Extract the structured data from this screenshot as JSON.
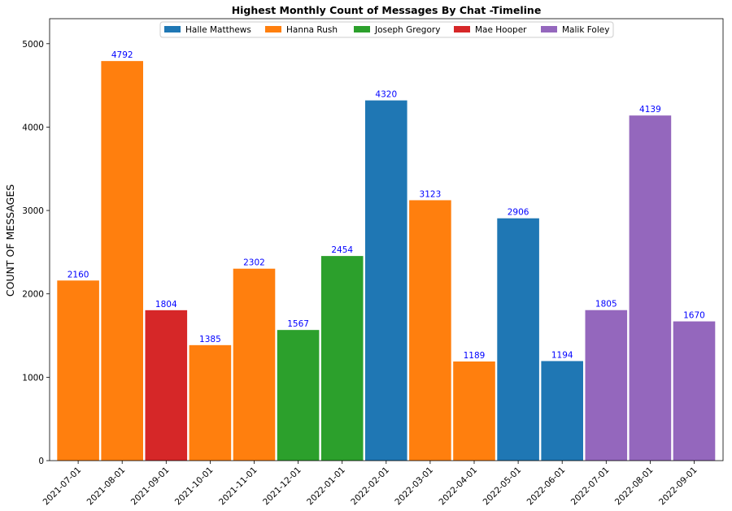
{
  "chart_data": {
    "type": "bar",
    "title": "Highest Monthly Count of Messages By Chat -Timeline",
    "xlabel": "",
    "ylabel": "COUNT OF MESSAGES",
    "ylim": [
      0,
      5300
    ],
    "yticks": [
      0,
      1000,
      2000,
      3000,
      4000,
      5000
    ],
    "grid": false,
    "legend_position": "top-center",
    "legend": [
      {
        "name": "Halle Matthews",
        "color": "#1f77b4"
      },
      {
        "name": "Hanna Rush",
        "color": "#ff7f0e"
      },
      {
        "name": "Joseph Gregory",
        "color": "#2ca02c"
      },
      {
        "name": "Mae Hooper",
        "color": "#d62728"
      },
      {
        "name": "Malik Foley",
        "color": "#9467bd"
      }
    ],
    "bars": [
      {
        "category": "2021-07-01",
        "value": 2160,
        "series": "Hanna Rush"
      },
      {
        "category": "2021-08-01",
        "value": 4792,
        "series": "Hanna Rush"
      },
      {
        "category": "2021-09-01",
        "value": 1804,
        "series": "Mae Hooper"
      },
      {
        "category": "2021-10-01",
        "value": 1385,
        "series": "Hanna Rush"
      },
      {
        "category": "2021-11-01",
        "value": 2302,
        "series": "Hanna Rush"
      },
      {
        "category": "2021-12-01",
        "value": 1567,
        "series": "Joseph Gregory"
      },
      {
        "category": "2022-01-01",
        "value": 2454,
        "series": "Joseph Gregory"
      },
      {
        "category": "2022-02-01",
        "value": 4320,
        "series": "Halle Matthews"
      },
      {
        "category": "2022-03-01",
        "value": 3123,
        "series": "Hanna Rush"
      },
      {
        "category": "2022-04-01",
        "value": 1189,
        "series": "Hanna Rush"
      },
      {
        "category": "2022-05-01",
        "value": 2906,
        "series": "Halle Matthews"
      },
      {
        "category": "2022-06-01",
        "value": 1194,
        "series": "Halle Matthews"
      },
      {
        "category": "2022-07-01",
        "value": 1805,
        "series": "Malik Foley"
      },
      {
        "category": "2022-08-01",
        "value": 4139,
        "series": "Malik Foley"
      },
      {
        "category": "2022-09-01",
        "value": 1670,
        "series": "Malik Foley"
      }
    ]
  }
}
